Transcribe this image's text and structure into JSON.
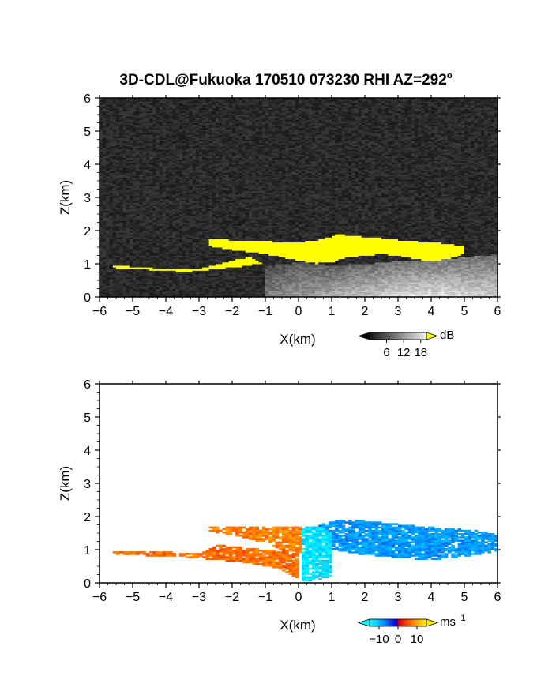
{
  "title_main": "3D-CDL@Fukuoka 170510 073230 RHI AZ=292",
  "title_degree": "o",
  "chart_data": [
    {
      "type": "heatmap",
      "xlabel": "X(km)",
      "ylabel": "Z(km)",
      "xlim": [
        -6,
        6
      ],
      "ylim": [
        0,
        6
      ],
      "xticks": [
        "-6",
        "-5",
        "-4",
        "-3",
        "-2",
        "-1",
        "0",
        "1",
        "2",
        "3",
        "4",
        "5",
        "6"
      ],
      "yticks": [
        "0",
        "1",
        "2",
        "3",
        "4",
        "5",
        "6"
      ],
      "colorbar": {
        "label": "dB",
        "ticks": [
          "6",
          "12",
          "18"
        ],
        "tick_values": [
          6,
          12,
          18
        ],
        "range": [
          0,
          20
        ],
        "overflow_color": "#ffff00"
      },
      "background_level_db": 2,
      "saturated_region": {
        "color": "#ffff00",
        "upper_layer": {
          "x": [
            -2.7,
            -2.0,
            -1.0,
            0.0,
            0.5,
            1.0,
            1.2,
            1.5,
            2.0,
            2.5,
            3.0,
            3.5,
            4.0,
            4.5,
            5.0
          ],
          "top": [
            1.75,
            1.72,
            1.68,
            1.66,
            1.7,
            1.82,
            1.92,
            1.86,
            1.82,
            1.78,
            1.72,
            1.68,
            1.66,
            1.6,
            1.52
          ],
          "bottom": [
            1.55,
            1.42,
            1.3,
            1.1,
            1.02,
            1.05,
            1.15,
            1.2,
            1.25,
            1.3,
            1.25,
            1.15,
            1.1,
            1.15,
            1.3
          ]
        },
        "lower_tongue": {
          "x": [
            -5.6,
            -5.0,
            -4.0,
            -3.0,
            -2.0,
            -1.5,
            -1.1,
            -1.5,
            -2.5,
            -3.0,
            -3.5,
            -4.0,
            -5.0,
            -5.6
          ],
          "z": [
            0.95,
            0.92,
            0.85,
            0.85,
            1.1,
            1.2,
            1.02,
            0.95,
            0.85,
            0.8,
            0.75,
            0.8,
            0.85,
            0.88
          ]
        }
      },
      "gray_echo": {
        "x": [
          -1.0,
          0.0,
          1.0,
          2.0,
          3.0,
          4.0,
          5.0,
          6.0
        ],
        "top": [
          0.95,
          1.05,
          0.95,
          1.0,
          1.1,
          1.1,
          1.2,
          1.3
        ],
        "level_db": [
          10,
          12,
          14,
          16,
          18,
          19,
          18,
          17
        ]
      }
    },
    {
      "type": "heatmap",
      "xlabel": "X(km)",
      "ylabel": "Z(km)",
      "xlim": [
        -6,
        6
      ],
      "ylim": [
        0,
        6
      ],
      "xticks": [
        "-6",
        "-5",
        "-4",
        "-3",
        "-2",
        "-1",
        "0",
        "1",
        "2",
        "3",
        "4",
        "5",
        "6"
      ],
      "yticks": [
        "0",
        "1",
        "2",
        "3",
        "4",
        "5",
        "6"
      ],
      "colorbar": {
        "label": "ms",
        "label_exponent": "-1",
        "ticks": [
          "-10",
          "0",
          "10"
        ],
        "tick_values": [
          -10,
          0,
          10
        ],
        "range": [
          -15,
          15
        ]
      },
      "velocity_regions": [
        {
          "name_hint": "receding",
          "x": [
            -2.7,
            -1.0,
            -0.3,
            0.1,
            0.1,
            -0.3,
            -1.0,
            -2.0,
            -2.7
          ],
          "z": [
            1.72,
            1.72,
            1.7,
            1.7,
            0.9,
            0.9,
            1.2,
            1.45,
            1.55
          ],
          "velocity": 8
        },
        {
          "name_hint": "receding_lower",
          "x": [
            -5.6,
            -4.5,
            -3.0,
            -2.5,
            -1.0,
            0.0,
            0.0,
            -0.5,
            -1.5,
            -2.5,
            -3.5,
            -4.5,
            -5.6
          ],
          "z": [
            0.95,
            0.95,
            0.9,
            1.15,
            1.0,
            0.9,
            0.1,
            0.4,
            0.6,
            0.7,
            0.78,
            0.82,
            0.88
          ],
          "velocity": 7
        },
        {
          "name_hint": "approaching_core",
          "x": [
            0.1,
            0.6,
            1.0,
            1.0,
            0.6,
            0.1
          ],
          "z": [
            1.72,
            1.7,
            1.55,
            0.2,
            0.1,
            0.05
          ],
          "velocity": -13
        },
        {
          "name_hint": "approaching",
          "x": [
            0.6,
            1.2,
            2.0,
            3.0,
            4.0,
            5.0,
            6.0,
            6.0,
            5.0,
            4.0,
            3.0,
            2.0,
            1.0,
            0.6
          ],
          "z": [
            1.75,
            1.9,
            1.88,
            1.78,
            1.68,
            1.62,
            1.5,
            0.95,
            0.8,
            0.7,
            0.75,
            0.85,
            1.0,
            1.2
          ],
          "velocity": -8
        }
      ]
    }
  ]
}
